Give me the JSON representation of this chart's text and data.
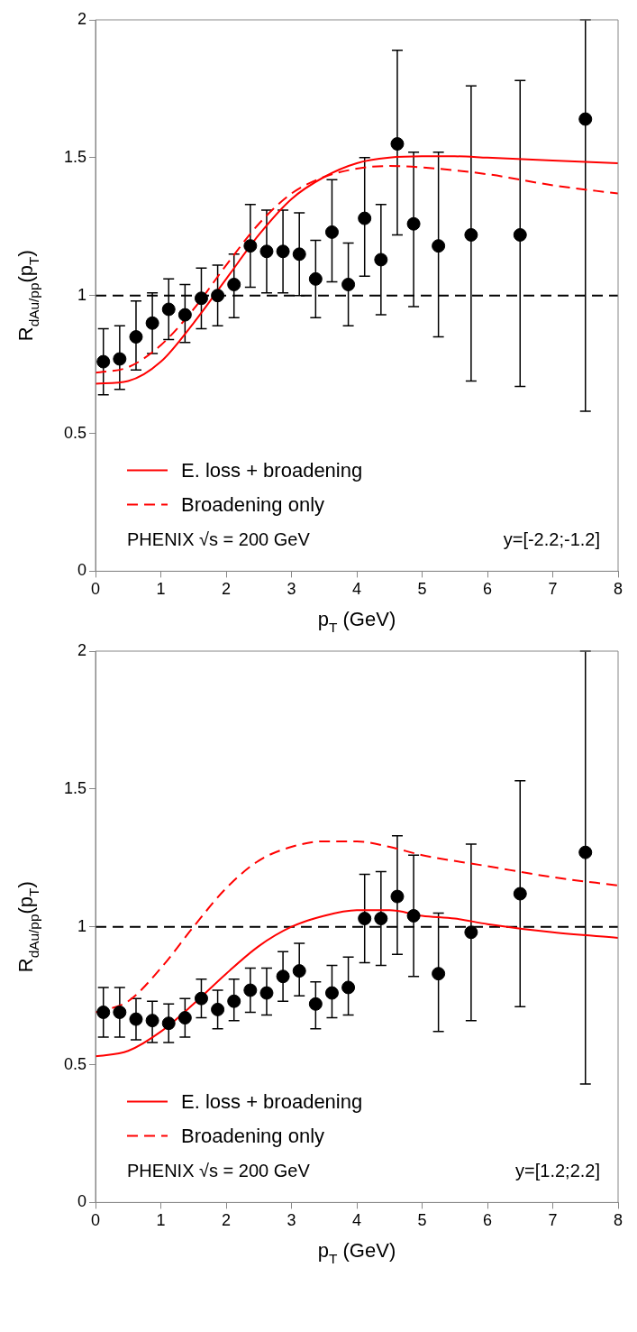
{
  "chart_data": [
    {
      "type": "scatter",
      "xlabel": "p$_{T}$ (GeV)",
      "ylabel": "R$_{dAu/pp}$(p$_{T}$)",
      "xlim": [
        0,
        8
      ],
      "xticks": [
        0,
        1,
        2,
        3,
        4,
        5,
        6,
        7,
        8
      ],
      "ylim": [
        0,
        2
      ],
      "yticks": [
        0,
        0.5,
        1,
        1.5,
        2
      ],
      "grid": false,
      "legend": "bottom left",
      "ref_lines": [
        {
          "axis": "y",
          "value": 1,
          "color": "#000000",
          "line_style": "dashed"
        }
      ],
      "annotations": [
        "PHENIX √s = 200 GeV",
        "y=[-2.2;-1.2]"
      ],
      "series": [
        {
          "type": "scatter",
          "color": "#000000",
          "marker": "circle",
          "x": [
            0.12,
            0.37,
            0.62,
            0.87,
            1.12,
            1.37,
            1.62,
            1.87,
            2.12,
            2.37,
            2.62,
            2.87,
            3.12,
            3.37,
            3.62,
            3.87,
            4.12,
            4.37,
            4.62,
            4.87,
            5.25,
            5.75,
            6.5,
            7.5
          ],
          "values": [
            0.76,
            0.77,
            0.85,
            0.9,
            0.95,
            0.93,
            0.99,
            1.0,
            1.04,
            1.18,
            1.16,
            1.16,
            1.15,
            1.06,
            1.23,
            1.04,
            1.28,
            1.13,
            1.55,
            1.26,
            1.18,
            1.22,
            1.22,
            1.64
          ],
          "errors": [
            [
              0.64,
              0.88
            ],
            [
              0.66,
              0.89
            ],
            [
              0.73,
              0.98
            ],
            [
              0.79,
              1.01
            ],
            [
              0.84,
              1.06
            ],
            [
              0.83,
              1.04
            ],
            [
              0.88,
              1.1
            ],
            [
              0.89,
              1.11
            ],
            [
              0.92,
              1.15
            ],
            [
              1.03,
              1.33
            ],
            [
              1.01,
              1.31
            ],
            [
              1.01,
              1.31
            ],
            [
              1.0,
              1.3
            ],
            [
              0.92,
              1.2
            ],
            [
              1.05,
              1.42
            ],
            [
              0.89,
              1.19
            ],
            [
              1.07,
              1.5
            ],
            [
              0.93,
              1.33
            ],
            [
              1.22,
              1.89
            ],
            [
              0.96,
              1.52
            ],
            [
              0.85,
              1.52
            ],
            [
              0.69,
              1.76
            ],
            [
              0.67,
              1.78
            ],
            [
              0.58,
              2.0
            ]
          ]
        },
        {
          "type": "line",
          "name": "E. loss + broadening",
          "color": "#ff0000",
          "line_style": "solid",
          "marker": "none",
          "x": [
            0,
            0.5,
            1,
            1.5,
            2,
            2.5,
            3,
            3.5,
            4,
            4.5,
            5,
            5.5,
            6,
            7,
            8
          ],
          "values": [
            0.68,
            0.69,
            0.76,
            0.9,
            1.06,
            1.22,
            1.35,
            1.43,
            1.48,
            1.5,
            1.505,
            1.505,
            1.5,
            1.49,
            1.48
          ]
        },
        {
          "type": "line",
          "name": "Broadening only",
          "color": "#ff0000",
          "line_style": "dashed",
          "marker": "none",
          "x": [
            0,
            0.5,
            1,
            1.5,
            2,
            2.5,
            3,
            3.5,
            4,
            4.5,
            5,
            6,
            7,
            8
          ],
          "values": [
            0.72,
            0.74,
            0.82,
            0.95,
            1.11,
            1.26,
            1.37,
            1.43,
            1.46,
            1.47,
            1.465,
            1.44,
            1.4,
            1.37
          ]
        }
      ]
    },
    {
      "type": "scatter",
      "xlabel": "p$_{T}$ (GeV)",
      "ylabel": "R$_{dAu/pp}$(p$_{T}$)",
      "xlim": [
        0,
        8
      ],
      "xticks": [
        0,
        1,
        2,
        3,
        4,
        5,
        6,
        7,
        8
      ],
      "ylim": [
        0,
        2
      ],
      "yticks": [
        0,
        0.5,
        1,
        1.5,
        2
      ],
      "grid": false,
      "legend": "bottom left",
      "ref_lines": [
        {
          "axis": "y",
          "value": 1,
          "color": "#000000",
          "line_style": "dashed"
        }
      ],
      "annotations": [
        "PHENIX √s = 200 GeV",
        "y=[1.2;2.2]"
      ],
      "series": [
        {
          "type": "scatter",
          "color": "#000000",
          "marker": "circle",
          "x": [
            0.12,
            0.37,
            0.62,
            0.87,
            1.12,
            1.37,
            1.62,
            1.87,
            2.12,
            2.37,
            2.62,
            2.87,
            3.12,
            3.37,
            3.62,
            3.87,
            4.12,
            4.37,
            4.62,
            4.87,
            5.25,
            5.75,
            6.5,
            7.5
          ],
          "values": [
            0.69,
            0.69,
            0.665,
            0.66,
            0.65,
            0.67,
            0.74,
            0.7,
            0.73,
            0.77,
            0.76,
            0.82,
            0.84,
            0.72,
            0.76,
            0.78,
            1.03,
            1.03,
            1.11,
            1.04,
            0.83,
            0.98,
            1.12,
            1.27
          ],
          "errors": [
            [
              0.6,
              0.78
            ],
            [
              0.6,
              0.78
            ],
            [
              0.59,
              0.74
            ],
            [
              0.58,
              0.73
            ],
            [
              0.58,
              0.72
            ],
            [
              0.6,
              0.74
            ],
            [
              0.67,
              0.81
            ],
            [
              0.63,
              0.77
            ],
            [
              0.66,
              0.81
            ],
            [
              0.69,
              0.85
            ],
            [
              0.68,
              0.85
            ],
            [
              0.73,
              0.91
            ],
            [
              0.75,
              0.94
            ],
            [
              0.63,
              0.8
            ],
            [
              0.67,
              0.86
            ],
            [
              0.68,
              0.89
            ],
            [
              0.87,
              1.19
            ],
            [
              0.86,
              1.2
            ],
            [
              0.9,
              1.33
            ],
            [
              0.82,
              1.26
            ],
            [
              0.62,
              1.05
            ],
            [
              0.66,
              1.3
            ],
            [
              0.71,
              1.53
            ],
            [
              0.43,
              2.0
            ]
          ]
        },
        {
          "type": "line",
          "name": "E. loss + broadening",
          "color": "#ff0000",
          "line_style": "solid",
          "marker": "none",
          "x": [
            0,
            0.5,
            1,
            1.5,
            2,
            2.5,
            3,
            3.5,
            4,
            4.5,
            5,
            5.5,
            6,
            7,
            8
          ],
          "values": [
            0.53,
            0.55,
            0.62,
            0.72,
            0.83,
            0.93,
            1.0,
            1.04,
            1.06,
            1.06,
            1.04,
            1.03,
            1.01,
            0.98,
            0.96
          ]
        },
        {
          "type": "line",
          "name": "Broadening only",
          "color": "#ff0000",
          "line_style": "dashed",
          "marker": "none",
          "x": [
            0,
            0.5,
            1,
            1.5,
            2,
            2.5,
            3,
            3.5,
            4,
            4.5,
            5,
            6,
            7,
            8
          ],
          "values": [
            0.69,
            0.73,
            0.85,
            1.0,
            1.14,
            1.24,
            1.29,
            1.31,
            1.31,
            1.29,
            1.26,
            1.22,
            1.18,
            1.15
          ]
        }
      ]
    }
  ]
}
